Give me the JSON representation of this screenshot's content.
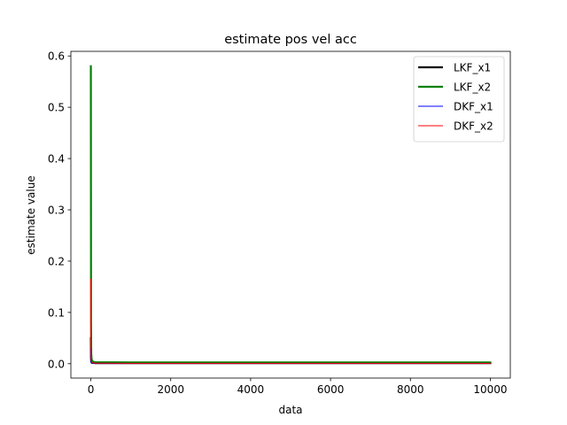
{
  "chart_data": {
    "type": "line",
    "title": "estimate pos vel acc",
    "xlabel": "data",
    "ylabel": "estimate value",
    "xlim": [
      -500,
      10500
    ],
    "ylim": [
      -0.028,
      0.609
    ],
    "xticks": [
      0,
      2000,
      4000,
      6000,
      8000,
      10000
    ],
    "xtick_labels": [
      "0",
      "2000",
      "4000",
      "6000",
      "8000",
      "10000"
    ],
    "yticks": [
      0.0,
      0.1,
      0.2,
      0.3,
      0.4,
      0.5,
      0.6
    ],
    "ytick_labels": [
      "0.0",
      "0.1",
      "0.2",
      "0.3",
      "0.4",
      "0.5",
      "0.6"
    ],
    "grid": false,
    "legend_position": "upper right",
    "series": [
      {
        "name": "LKF_x1",
        "color": "#000000",
        "width": 2.2,
        "x": [
          0,
          5,
          10,
          20,
          50,
          100,
          1000,
          2000,
          3000,
          4000,
          5000,
          6000,
          7000,
          8000,
          9000,
          10000
        ],
        "y": [
          0.05,
          0.01,
          0.004,
          0.002,
          0.0015,
          0.0012,
          0.001,
          0.001,
          0.001,
          0.001,
          0.001,
          0.001,
          0.001,
          0.001,
          0.001,
          0.001
        ]
      },
      {
        "name": "LKF_x2",
        "color": "#008000",
        "width": 2.2,
        "x": [
          0,
          5,
          10,
          20,
          50,
          100,
          1000,
          2000,
          3000,
          4000,
          5000,
          6000,
          7000,
          8000,
          9000,
          10000
        ],
        "y": [
          0.58,
          0.08,
          0.02,
          0.008,
          0.004,
          0.003,
          0.0025,
          0.0025,
          0.0025,
          0.0025,
          0.0025,
          0.0025,
          0.0025,
          0.0025,
          0.0025,
          0.0025
        ]
      },
      {
        "name": "DKF_x1",
        "color": "#0000ff",
        "width": 1.0,
        "x": [
          0,
          5,
          10,
          20,
          50,
          100,
          1000,
          2000,
          3000,
          4000,
          5000,
          6000,
          7000,
          8000,
          9000,
          10000
        ],
        "y": [
          0.03,
          0.006,
          0.002,
          0.001,
          0.0008,
          0.0006,
          0.0005,
          0.0005,
          0.0005,
          0.0005,
          0.0005,
          0.0005,
          0.0005,
          0.0005,
          0.0005,
          0.0005
        ]
      },
      {
        "name": "DKF_x2",
        "color": "#ff0000",
        "width": 1.0,
        "x": [
          0,
          5,
          10,
          20,
          50,
          100,
          1000,
          2000,
          3000,
          4000,
          5000,
          6000,
          7000,
          8000,
          9000,
          10000
        ],
        "y": [
          0.165,
          0.03,
          0.008,
          0.003,
          0.0015,
          0.001,
          0.0008,
          0.0008,
          0.0008,
          0.0008,
          0.0008,
          0.0008,
          0.0008,
          0.0008,
          0.0008,
          0.0008
        ]
      }
    ]
  }
}
